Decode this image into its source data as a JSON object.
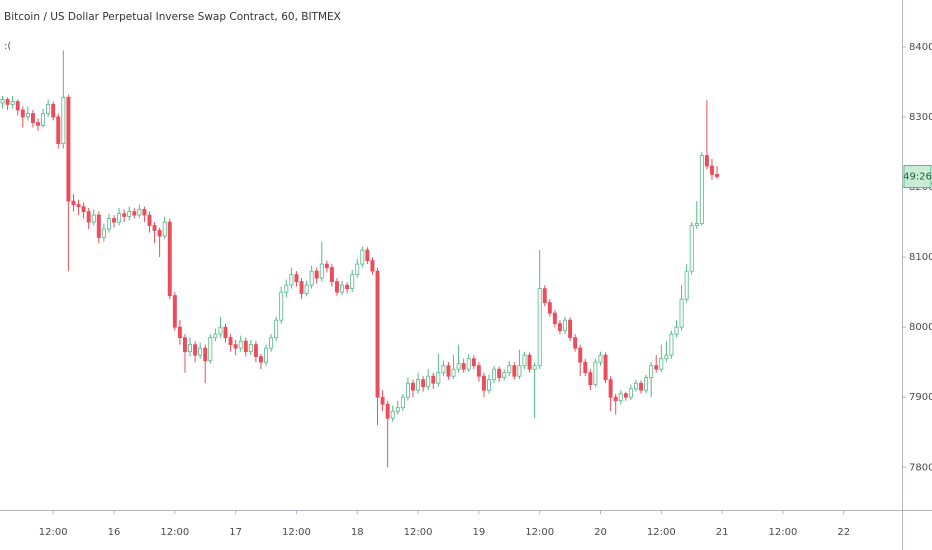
{
  "chart_data": {
    "type": "candlestick",
    "title": "Bitcoin / US Dollar Perpetual Inverse Swap Contract, 60, BITMEX",
    "indicator_label": ":(",
    "countdown": "49:26",
    "up_color": "#53b987",
    "down_color": "#eb4d5c",
    "grid": false,
    "ylim": [
      7739,
      8467
    ],
    "yticks": [
      {
        "value": 7800,
        "label": "7800.0"
      },
      {
        "value": 7900,
        "label": "7900.0"
      },
      {
        "value": 8000,
        "label": "8000.0"
      },
      {
        "value": 8100,
        "label": "8100.0"
      },
      {
        "value": 8200,
        "label": "8200.0"
      },
      {
        "value": 8300,
        "label": "8300.0"
      },
      {
        "value": 8400,
        "label": "8400.0"
      }
    ],
    "categories": [
      null,
      null,
      null,
      null,
      null,
      null,
      null,
      null,
      null,
      null,
      "12:00",
      null,
      null,
      null,
      null,
      null,
      null,
      null,
      null,
      null,
      null,
      null,
      "16",
      null,
      null,
      null,
      null,
      null,
      null,
      null,
      null,
      null,
      null,
      null,
      "12:00",
      null,
      null,
      null,
      null,
      null,
      null,
      null,
      null,
      null,
      null,
      null,
      "17",
      null,
      null,
      null,
      null,
      null,
      null,
      null,
      null,
      null,
      null,
      null,
      "12:00",
      null,
      null,
      null,
      null,
      null,
      null,
      null,
      null,
      null,
      null,
      null,
      "18",
      null,
      null,
      null,
      null,
      null,
      null,
      null,
      null,
      null,
      null,
      null,
      "12:00",
      null,
      null,
      null,
      null,
      null,
      null,
      null,
      null,
      null,
      null,
      null,
      "19",
      null,
      null,
      null,
      null,
      null,
      null,
      null,
      null,
      null,
      null,
      null,
      "12:00",
      null,
      null,
      null,
      null,
      null,
      null,
      null,
      null,
      null,
      null,
      null,
      "20",
      null,
      null,
      null,
      null,
      null,
      null,
      null,
      null,
      null,
      null,
      null,
      "12:00",
      null,
      null,
      null,
      null,
      null,
      null,
      null,
      null,
      null,
      null,
      null,
      "21",
      null,
      null,
      null,
      null,
      null,
      null,
      null,
      null,
      null,
      null,
      null,
      "12:00",
      null,
      null,
      null,
      null,
      null,
      null,
      null,
      null,
      null,
      null,
      null,
      "22",
      null,
      null,
      null,
      null,
      null,
      null,
      null,
      null,
      null,
      null,
      null
    ],
    "open": [
      8320,
      8325,
      8318,
      8322,
      8310,
      8300,
      8305,
      8292,
      8288,
      8305,
      8318,
      8300,
      8262,
      8328,
      8180,
      8175,
      8172,
      8165,
      8150,
      8160,
      8128,
      8140,
      8155,
      8150,
      8162,
      8158,
      8165,
      8160,
      8168,
      8160,
      8145,
      8138,
      8130,
      8150,
      8045,
      8000,
      7985,
      7965,
      7975,
      7960,
      7970,
      7952,
      7985,
      7990,
      8000,
      7985,
      7975,
      7970,
      7980,
      7965,
      7975,
      7958,
      7950,
      7970,
      7985,
      8010,
      8050,
      8060,
      8075,
      8065,
      8048,
      8060,
      8080,
      8070,
      8090,
      8085,
      8065,
      8050,
      8060,
      8055,
      8075,
      8090,
      8110,
      8095,
      8080,
      7900,
      7890,
      7870,
      7880,
      7885,
      7900,
      7920,
      7910,
      7925,
      7915,
      7930,
      7920,
      7935,
      7945,
      7930,
      7940,
      7948,
      7940,
      7955,
      7945,
      7930,
      7910,
      7925,
      7940,
      7928,
      7935,
      7945,
      7930,
      7945,
      7960,
      7940,
      7945,
      8055,
      8035,
      8020,
      8005,
      7995,
      8010,
      7985,
      7970,
      7950,
      7935,
      7918,
      7950,
      7960,
      7925,
      7900,
      7895,
      7905,
      7900,
      7912,
      7920,
      7910,
      7928,
      7945,
      7940,
      7955,
      7960,
      7990,
      8000,
      8040,
      8080,
      8145,
      8148,
      8245,
      8230,
      8218,
      null,
      null,
      null,
      null,
      null,
      null,
      null,
      null,
      null,
      null,
      null,
      null,
      null,
      null,
      null,
      null,
      null,
      null,
      null,
      null,
      null,
      null,
      null,
      null,
      null,
      null,
      null,
      null,
      null,
      null,
      null,
      null,
      null,
      null,
      null,
      null
    ],
    "high": [
      8330,
      8328,
      8330,
      8325,
      8315,
      8315,
      8310,
      8298,
      8312,
      8325,
      8322,
      8305,
      8395,
      8332,
      8190,
      8182,
      8178,
      8170,
      8168,
      8165,
      8148,
      8162,
      8160,
      8170,
      8168,
      8172,
      8170,
      8175,
      8172,
      8165,
      8150,
      8142,
      8158,
      8155,
      8050,
      8010,
      7990,
      7985,
      7980,
      7978,
      7975,
      7990,
      7998,
      8015,
      8005,
      7990,
      7982,
      7988,
      7985,
      7982,
      7980,
      7962,
      7975,
      7990,
      8015,
      8058,
      8068,
      8085,
      8080,
      8070,
      8066,
      8088,
      8085,
      8122,
      8095,
      8090,
      8070,
      8066,
      8064,
      8082,
      8098,
      8115,
      8114,
      8100,
      8085,
      7910,
      7895,
      7888,
      7895,
      7905,
      7928,
      7925,
      7935,
      7930,
      7940,
      7935,
      7962,
      7952,
      7950,
      7960,
      7975,
      7955,
      7962,
      7960,
      7950,
      7935,
      7932,
      7945,
      7944,
      7940,
      7952,
      7950,
      7968,
      7965,
      7964,
      7950,
      8110,
      8060,
      8040,
      8025,
      8010,
      8015,
      8014,
      7990,
      7975,
      7955,
      7940,
      7955,
      7965,
      7964,
      7930,
      7905,
      7910,
      7908,
      7918,
      7925,
      7924,
      7932,
      7950,
      7960,
      7975,
      7980,
      7995,
      8010,
      8060,
      8090,
      8150,
      8180,
      8250,
      8324,
      8240,
      8230,
      null,
      null,
      null,
      null,
      null,
      null,
      null,
      null,
      null,
      null,
      null,
      null,
      null,
      null,
      null,
      null,
      null,
      null,
      null,
      null,
      null,
      null,
      null,
      null,
      null,
      null,
      null,
      null,
      null,
      null,
      null,
      null,
      null,
      null,
      null,
      null
    ],
    "low": [
      8312,
      8310,
      8312,
      8302,
      8285,
      8295,
      8285,
      8280,
      8285,
      8300,
      8295,
      8255,
      8255,
      8080,
      8165,
      8160,
      8155,
      8140,
      8145,
      8120,
      8122,
      8135,
      8142,
      8145,
      8150,
      8152,
      8155,
      8156,
      8150,
      8135,
      8120,
      8100,
      8126,
      8040,
      7995,
      7975,
      7935,
      7958,
      7950,
      7955,
      7920,
      7948,
      7980,
      7985,
      7978,
      7965,
      7960,
      7965,
      7958,
      7960,
      7950,
      7940,
      7945,
      7965,
      7980,
      8005,
      8042,
      8055,
      8058,
      8040,
      8044,
      8055,
      8062,
      8065,
      8078,
      8058,
      8045,
      8046,
      8048,
      8050,
      8070,
      8085,
      8090,
      8075,
      7860,
      7880,
      7800,
      7865,
      7875,
      7880,
      7895,
      7900,
      7905,
      7908,
      7910,
      7912,
      7915,
      7930,
      7925,
      7926,
      7935,
      7935,
      7936,
      7940,
      7922,
      7900,
      7905,
      7920,
      7922,
      7924,
      7930,
      7925,
      7926,
      7940,
      7935,
      7870,
      7940,
      8030,
      8015,
      8000,
      7990,
      7990,
      7980,
      7965,
      7930,
      7930,
      7910,
      7914,
      7945,
      7920,
      7880,
      7875,
      7890,
      7895,
      7896,
      7908,
      7905,
      7906,
      7900,
      7935,
      7936,
      7950,
      7955,
      7985,
      7995,
      8035,
      8075,
      8140,
      8145,
      8225,
      8210,
      8212,
      null,
      null,
      null,
      null,
      null,
      null,
      null,
      null,
      null,
      null,
      null,
      null,
      null,
      null,
      null,
      null,
      null,
      null,
      null,
      null,
      null,
      null,
      null,
      null,
      null,
      null,
      null,
      null,
      null,
      null,
      null,
      null,
      null,
      null,
      null,
      null
    ],
    "close": [
      8325,
      8318,
      8322,
      8310,
      8300,
      8305,
      8292,
      8288,
      8305,
      8318,
      8300,
      8262,
      8328,
      8180,
      8175,
      8172,
      8165,
      8150,
      8160,
      8128,
      8140,
      8155,
      8150,
      8162,
      8158,
      8165,
      8160,
      8168,
      8160,
      8145,
      8138,
      8130,
      8150,
      8045,
      8000,
      7985,
      7965,
      7975,
      7960,
      7970,
      7952,
      7985,
      7990,
      8000,
      7985,
      7975,
      7970,
      7980,
      7965,
      7975,
      7958,
      7950,
      7970,
      7985,
      8010,
      8050,
      8060,
      8075,
      8065,
      8048,
      8060,
      8080,
      8070,
      8090,
      8085,
      8065,
      8050,
      8060,
      8055,
      8075,
      8090,
      8110,
      8095,
      8080,
      7900,
      7890,
      7870,
      7880,
      7885,
      7900,
      7920,
      7910,
      7925,
      7915,
      7930,
      7920,
      7935,
      7945,
      7930,
      7940,
      7948,
      7940,
      7955,
      7945,
      7930,
      7910,
      7925,
      7940,
      7928,
      7935,
      7945,
      7930,
      7945,
      7960,
      7940,
      7945,
      8055,
      8035,
      8020,
      8005,
      7995,
      8010,
      7985,
      7970,
      7950,
      7935,
      7918,
      7950,
      7960,
      7925,
      7900,
      7895,
      7905,
      7900,
      7912,
      7920,
      7910,
      7928,
      7945,
      7940,
      7955,
      7960,
      7990,
      8000,
      8040,
      8080,
      8145,
      8148,
      8245,
      8230,
      8218,
      8215,
      null,
      null,
      null,
      null,
      null,
      null,
      null,
      null,
      null,
      null,
      null,
      null,
      null,
      null,
      null,
      null,
      null,
      null,
      null,
      null,
      null,
      null,
      null,
      null,
      null,
      null,
      null,
      null,
      null,
      null,
      null,
      null,
      null,
      null,
      null,
      null
    ]
  }
}
